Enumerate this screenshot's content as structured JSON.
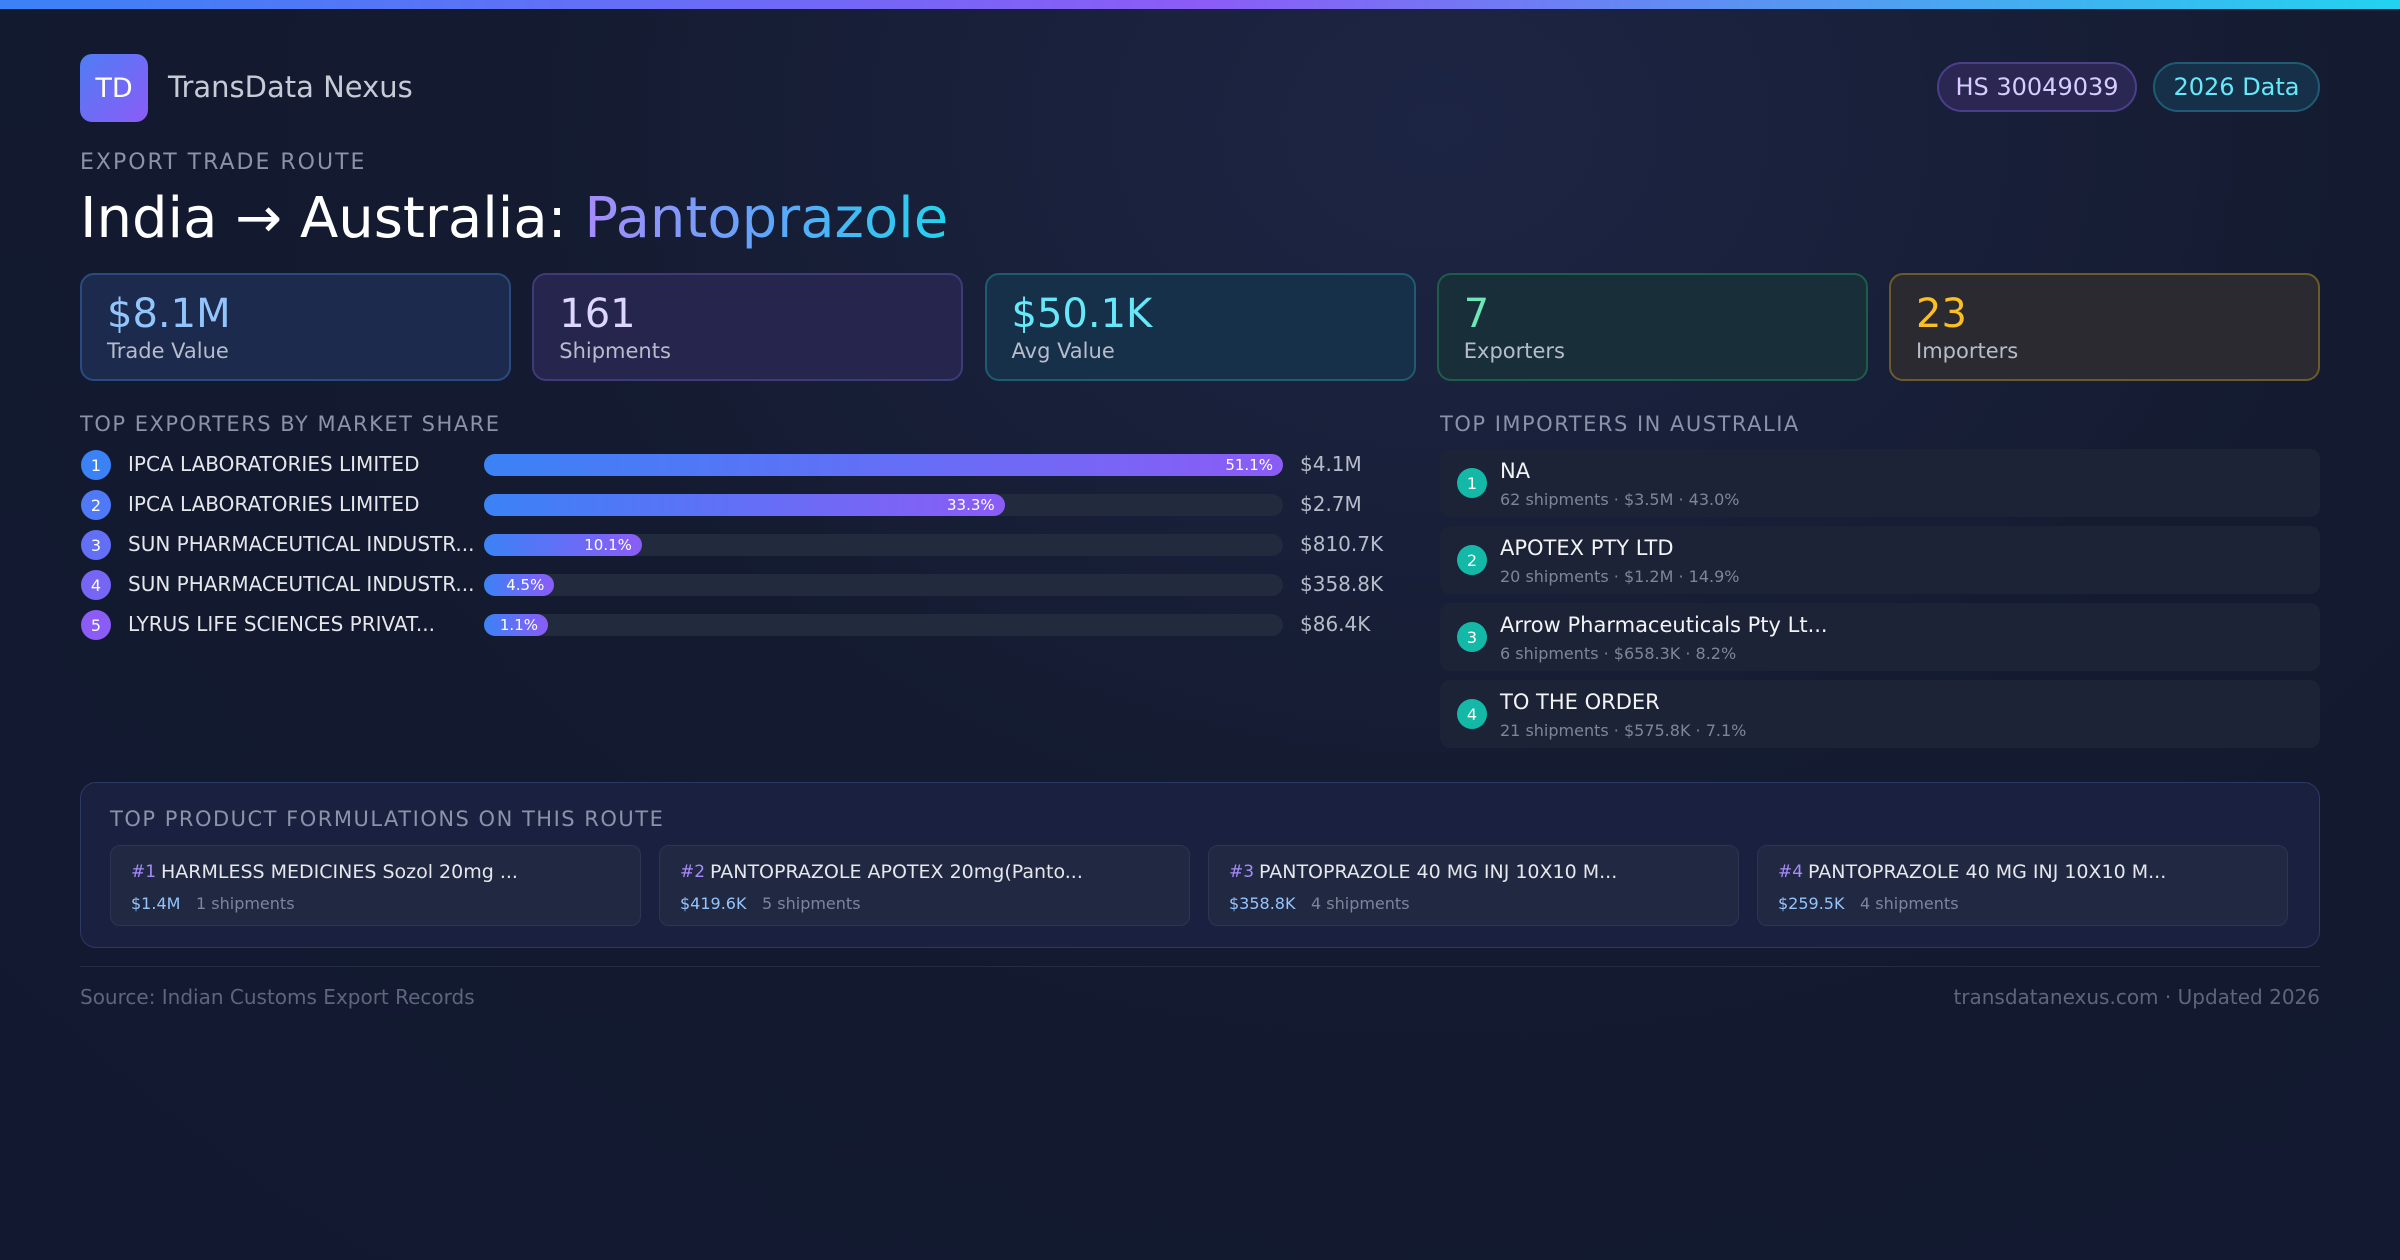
{
  "header": {
    "logo": "TD",
    "brand": "TransData Nexus",
    "badges": [
      "HS 30049039",
      "2026 Data"
    ]
  },
  "route": {
    "eyebrow": "EXPORT TRADE ROUTE",
    "title": "India → Australia:",
    "product": "Pantoprazole"
  },
  "stats": [
    {
      "value": "$8.1M",
      "label": "Trade Value"
    },
    {
      "value": "161",
      "label": "Shipments"
    },
    {
      "value": "$50.1K",
      "label": "Avg Value"
    },
    {
      "value": "7",
      "label": "Exporters"
    },
    {
      "value": "23",
      "label": "Importers"
    }
  ],
  "exporters": {
    "heading": "TOP EXPORTERS BY MARKET SHARE",
    "rows": [
      {
        "rank": "1",
        "name": "IPCA LABORATORIES LIMITED",
        "share": 51.1,
        "share_label": "51.1%",
        "value": "$4.1M"
      },
      {
        "rank": "2",
        "name": "IPCA LABORATORIES LIMITED",
        "share": 33.3,
        "share_label": "33.3%",
        "value": "$2.7M"
      },
      {
        "rank": "3",
        "name": "SUN PHARMACEUTICAL INDUSTR...",
        "share": 10.1,
        "share_label": "10.1%",
        "value": "$810.7K"
      },
      {
        "rank": "4",
        "name": "SUN PHARMACEUTICAL INDUSTR...",
        "share": 4.5,
        "share_label": "4.5%",
        "value": "$358.8K"
      },
      {
        "rank": "5",
        "name": "LYRUS LIFE SCIENCES PRIVAT...",
        "share": 1.1,
        "share_label": "1.1%",
        "value": "$86.4K"
      }
    ]
  },
  "importers": {
    "heading": "TOP IMPORTERS IN AUSTRALIA",
    "rows": [
      {
        "rank": "1",
        "name": "NA",
        "detail": "62 shipments · $3.5M · 43.0%"
      },
      {
        "rank": "2",
        "name": "APOTEX PTY LTD",
        "detail": "20 shipments · $1.2M · 14.9%"
      },
      {
        "rank": "3",
        "name": "Arrow Pharmaceuticals Pty Lt...",
        "detail": "6 shipments · $658.3K · 8.2%"
      },
      {
        "rank": "4",
        "name": "TO THE ORDER",
        "detail": "21 shipments · $575.8K · 7.1%"
      }
    ]
  },
  "formulations": {
    "heading": "TOP PRODUCT FORMULATIONS ON THIS ROUTE",
    "items": [
      {
        "rank": "#1",
        "name": "HARMLESS MEDICINES Sozol 20mg ...",
        "value": "$1.4M",
        "shipments": "1 shipments"
      },
      {
        "rank": "#2",
        "name": "PANTOPRAZOLE APOTEX 20mg(Panto...",
        "value": "$419.6K",
        "shipments": "5 shipments"
      },
      {
        "rank": "#3",
        "name": "PANTOPRAZOLE 40 MG INJ 10X10 M...",
        "value": "$358.8K",
        "shipments": "4 shipments"
      },
      {
        "rank": "#4",
        "name": "PANTOPRAZOLE 40 MG INJ 10X10 M...",
        "value": "$259.5K",
        "shipments": "4 shipments"
      }
    ]
  },
  "footer": {
    "source": "Source: Indian Customs Export Records",
    "site": "transdatanexus.com · Updated 2026"
  }
}
